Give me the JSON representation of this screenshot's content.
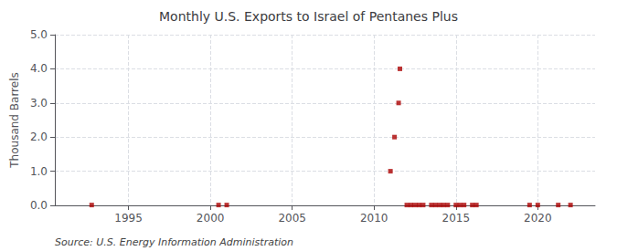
{
  "chart_data": {
    "type": "scatter",
    "title": "Monthly U.S. Exports to Israel of Pentanes Plus",
    "ylabel": "Thousand Barrels",
    "source": "Source: U.S. Energy Information Administration",
    "x": [
      1992.75,
      2000.5,
      2001.0,
      2011.0,
      2011.25,
      2011.5,
      2011.58,
      2012.0,
      2012.25,
      2012.5,
      2012.75,
      2013.0,
      2013.5,
      2013.75,
      2014.0,
      2014.25,
      2014.5,
      2015.0,
      2015.25,
      2015.5,
      2016.0,
      2016.25,
      2019.5,
      2020.0,
      2021.25,
      2022.0
    ],
    "values": [
      0.01,
      0.01,
      0.01,
      1.0,
      2.0,
      3.0,
      4.0,
      0.01,
      0.01,
      0.01,
      0.01,
      0.01,
      0.01,
      0.01,
      0.01,
      0.01,
      0.01,
      0.01,
      0.01,
      0.01,
      0.01,
      0.01,
      0.01,
      0.01,
      0.01,
      0.01
    ],
    "color": "#aa0000",
    "marker": "square",
    "xlim": [
      1990.5,
      2023.5
    ],
    "xticks": [
      1995,
      2000,
      2005,
      2010,
      2015,
      2020
    ],
    "ylim": [
      0,
      5.0
    ],
    "yticks": [
      {
        "value": 0,
        "label": "0.0"
      },
      {
        "value": 1,
        "label": "1.0"
      },
      {
        "value": 2,
        "label": "2.0"
      },
      {
        "value": 3,
        "label": "3.0"
      },
      {
        "value": 4,
        "label": "4.0"
      },
      {
        "value": 5,
        "label": "5.0"
      }
    ],
    "grid": true
  }
}
